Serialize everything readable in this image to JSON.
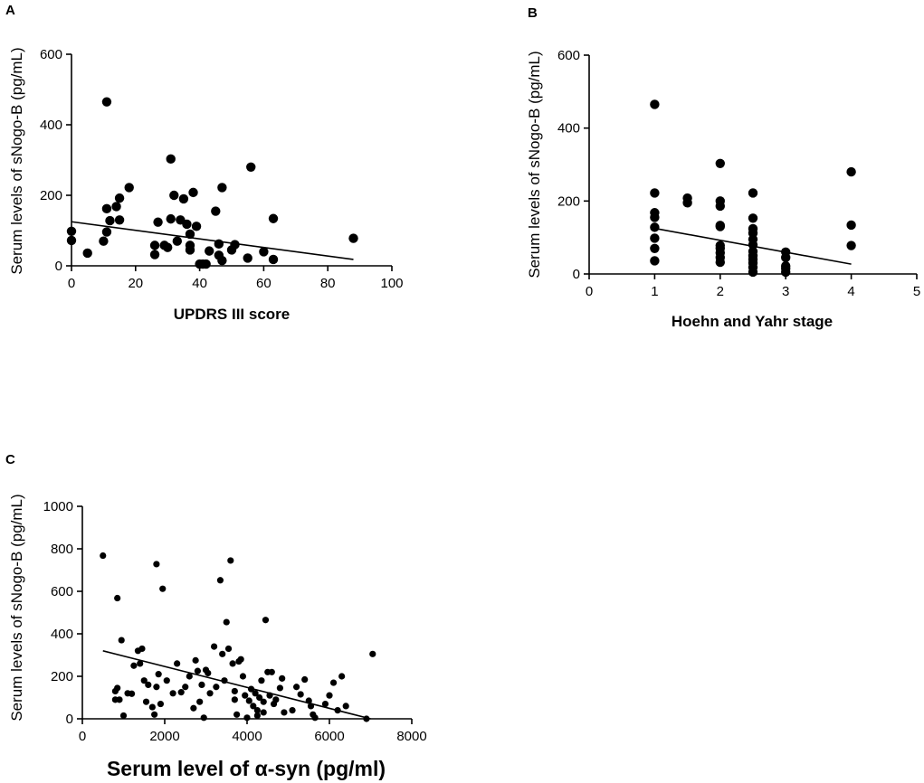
{
  "chart_data": [
    {
      "type": "scatter",
      "panel_label": "A",
      "xlabel": "UPDRS III score",
      "ylabel": "Serum levels of sNogo-B (pg/mL)",
      "xlim": [
        0,
        100
      ],
      "ylim": [
        0,
        600
      ],
      "xticks": [
        0,
        20,
        40,
        60,
        80,
        100
      ],
      "yticks": [
        0,
        200,
        400,
        600
      ],
      "fit_line": [
        [
          0,
          125
        ],
        [
          88,
          18
        ]
      ],
      "points": [
        [
          0,
          98
        ],
        [
          0,
          72
        ],
        [
          5,
          36
        ],
        [
          10,
          70
        ],
        [
          11,
          465
        ],
        [
          11,
          162
        ],
        [
          11,
          96
        ],
        [
          12,
          128
        ],
        [
          14,
          168
        ],
        [
          15,
          192
        ],
        [
          15,
          130
        ],
        [
          18,
          222
        ],
        [
          26,
          58
        ],
        [
          26,
          32
        ],
        [
          27,
          124
        ],
        [
          29,
          58
        ],
        [
          30,
          52
        ],
        [
          31,
          303
        ],
        [
          31,
          133
        ],
        [
          32,
          200
        ],
        [
          33,
          70
        ],
        [
          34,
          130
        ],
        [
          35,
          190
        ],
        [
          36,
          118
        ],
        [
          37,
          90
        ],
        [
          37,
          58
        ],
        [
          37,
          45
        ],
        [
          38,
          208
        ],
        [
          39,
          112
        ],
        [
          40,
          5
        ],
        [
          41,
          5
        ],
        [
          42,
          5
        ],
        [
          43,
          42
        ],
        [
          45,
          155
        ],
        [
          46,
          62
        ],
        [
          47,
          222
        ],
        [
          46,
          30
        ],
        [
          47,
          15
        ],
        [
          50,
          45
        ],
        [
          51,
          60
        ],
        [
          55,
          22
        ],
        [
          56,
          280
        ],
        [
          60,
          40
        ],
        [
          63,
          134
        ],
        [
          63,
          18
        ],
        [
          88,
          78
        ]
      ]
    },
    {
      "type": "scatter",
      "panel_label": "B",
      "xlabel": "Hoehn and Yahr stage",
      "ylabel": "Serum levels of sNogo-B (pg/mL)",
      "xlim": [
        0,
        5
      ],
      "ylim": [
        0,
        600
      ],
      "xticks": [
        0,
        1,
        2,
        3,
        4,
        5
      ],
      "yticks": [
        0,
        200,
        400,
        600
      ],
      "fit_line": [
        [
          1,
          125
        ],
        [
          4,
          27
        ]
      ],
      "points": [
        [
          1,
          465
        ],
        [
          1,
          222
        ],
        [
          1,
          168
        ],
        [
          1,
          155
        ],
        [
          1,
          128
        ],
        [
          1,
          98
        ],
        [
          1,
          70
        ],
        [
          1,
          36
        ],
        [
          1.5,
          208
        ],
        [
          1.5,
          195
        ],
        [
          2,
          303
        ],
        [
          2,
          200
        ],
        [
          2,
          186
        ],
        [
          2,
          133
        ],
        [
          2,
          130
        ],
        [
          2,
          78
        ],
        [
          2,
          70
        ],
        [
          2,
          58
        ],
        [
          2,
          45
        ],
        [
          2,
          32
        ],
        [
          2.5,
          222
        ],
        [
          2.5,
          153
        ],
        [
          2.5,
          124
        ],
        [
          2.5,
          112
        ],
        [
          2.5,
          95
        ],
        [
          2.5,
          80
        ],
        [
          2.5,
          62
        ],
        [
          2.5,
          50
        ],
        [
          2.5,
          40
        ],
        [
          2.5,
          30
        ],
        [
          2.5,
          18
        ],
        [
          2.5,
          5
        ],
        [
          3,
          60
        ],
        [
          3,
          45
        ],
        [
          3,
          22
        ],
        [
          3,
          15
        ],
        [
          3,
          5
        ],
        [
          4,
          280
        ],
        [
          4,
          134
        ],
        [
          4,
          78
        ]
      ]
    },
    {
      "type": "scatter",
      "panel_label": "C",
      "xlabel": "Serum level of α-syn (pg/ml)",
      "ylabel": "Serum levels of sNogo-B (pg/mL)",
      "xlim": [
        0,
        8000
      ],
      "ylim": [
        0,
        1000
      ],
      "xticks": [
        0,
        2000,
        4000,
        6000,
        8000
      ],
      "yticks": [
        0,
        200,
        400,
        600,
        800,
        1000
      ],
      "fit_line": [
        [
          500,
          320
        ],
        [
          7000,
          0
        ]
      ],
      "points": [
        [
          500,
          768
        ],
        [
          800,
          130
        ],
        [
          800,
          90
        ],
        [
          850,
          568
        ],
        [
          850,
          145
        ],
        [
          900,
          90
        ],
        [
          950,
          370
        ],
        [
          1000,
          15
        ],
        [
          1100,
          120
        ],
        [
          1200,
          118
        ],
        [
          1250,
          250
        ],
        [
          1350,
          320
        ],
        [
          1400,
          260
        ],
        [
          1450,
          330
        ],
        [
          1500,
          180
        ],
        [
          1550,
          80
        ],
        [
          1600,
          160
        ],
        [
          1700,
          55
        ],
        [
          1750,
          20
        ],
        [
          1800,
          150
        ],
        [
          1800,
          728
        ],
        [
          1850,
          210
        ],
        [
          1900,
          70
        ],
        [
          1950,
          612
        ],
        [
          2050,
          180
        ],
        [
          2200,
          120
        ],
        [
          2300,
          260
        ],
        [
          2400,
          125
        ],
        [
          2500,
          150
        ],
        [
          2600,
          200
        ],
        [
          2700,
          50
        ],
        [
          2750,
          275
        ],
        [
          2800,
          225
        ],
        [
          2850,
          80
        ],
        [
          2900,
          160
        ],
        [
          2950,
          5
        ],
        [
          3000,
          230
        ],
        [
          3050,
          215
        ],
        [
          3100,
          120
        ],
        [
          3200,
          340
        ],
        [
          3250,
          150
        ],
        [
          3350,
          652
        ],
        [
          3400,
          305
        ],
        [
          3450,
          180
        ],
        [
          3500,
          455
        ],
        [
          3550,
          330
        ],
        [
          3600,
          745
        ],
        [
          3650,
          260
        ],
        [
          3700,
          130
        ],
        [
          3700,
          90
        ],
        [
          3750,
          20
        ],
        [
          3800,
          270
        ],
        [
          3850,
          280
        ],
        [
          3900,
          200
        ],
        [
          3950,
          110
        ],
        [
          4000,
          5
        ],
        [
          4050,
          85
        ],
        [
          4100,
          140
        ],
        [
          4150,
          60
        ],
        [
          4200,
          120
        ],
        [
          4250,
          40
        ],
        [
          4250,
          15
        ],
        [
          4300,
          100
        ],
        [
          4350,
          180
        ],
        [
          4400,
          80
        ],
        [
          4400,
          30
        ],
        [
          4450,
          465
        ],
        [
          4500,
          220
        ],
        [
          4550,
          110
        ],
        [
          4600,
          220
        ],
        [
          4650,
          70
        ],
        [
          4700,
          90
        ],
        [
          4800,
          145
        ],
        [
          4850,
          190
        ],
        [
          4900,
          30
        ],
        [
          5100,
          40
        ],
        [
          5200,
          150
        ],
        [
          5300,
          115
        ],
        [
          5400,
          185
        ],
        [
          5500,
          85
        ],
        [
          5550,
          60
        ],
        [
          5600,
          20
        ],
        [
          5650,
          5
        ],
        [
          5900,
          70
        ],
        [
          6000,
          110
        ],
        [
          6100,
          170
        ],
        [
          6200,
          40
        ],
        [
          6300,
          200
        ],
        [
          6400,
          60
        ],
        [
          6900,
          0
        ],
        [
          7050,
          305
        ]
      ]
    }
  ]
}
